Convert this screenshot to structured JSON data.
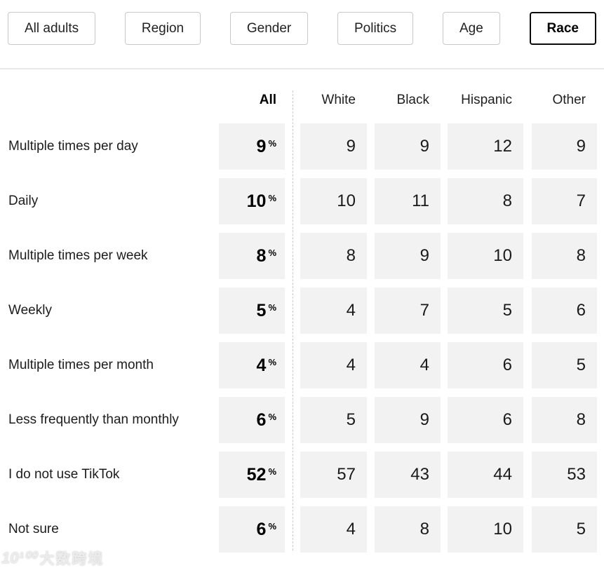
{
  "filters": {
    "items": [
      {
        "label": "All adults",
        "selected": false
      },
      {
        "label": "Region",
        "selected": false
      },
      {
        "label": "Gender",
        "selected": false
      },
      {
        "label": "Politics",
        "selected": false
      },
      {
        "label": "Age",
        "selected": false
      },
      {
        "label": "Race",
        "selected": true
      }
    ]
  },
  "table": {
    "all_column_header": "All",
    "percent_symbol": "%",
    "group_headers": [
      "White",
      "Black",
      "Hispanic",
      "Other"
    ],
    "rows": [
      {
        "label": "Multiple times per day",
        "all": "9",
        "values": [
          "9",
          "9",
          "12",
          "9"
        ]
      },
      {
        "label": "Daily",
        "all": "10",
        "values": [
          "10",
          "11",
          "8",
          "7"
        ]
      },
      {
        "label": "Multiple times per week",
        "all": "8",
        "values": [
          "8",
          "9",
          "10",
          "8"
        ]
      },
      {
        "label": "Weekly",
        "all": "5",
        "values": [
          "4",
          "7",
          "5",
          "6"
        ]
      },
      {
        "label": "Multiple times per month",
        "all": "4",
        "values": [
          "4",
          "4",
          "6",
          "5"
        ]
      },
      {
        "label": "Less frequently than monthly",
        "all": "6",
        "values": [
          "5",
          "9",
          "6",
          "8"
        ]
      },
      {
        "label": "I do not use TikTok",
        "all": "52",
        "values": [
          "57",
          "43",
          "44",
          "53"
        ]
      },
      {
        "label": "Not sure",
        "all": "6",
        "values": [
          "4",
          "8",
          "10",
          "5"
        ]
      }
    ]
  },
  "watermark": {
    "logo": "10¹⁰⁰",
    "text": "大数跨境"
  },
  "colors": {
    "cell_background": "#f2f2f3",
    "selected_button_border": "#0a0a0a",
    "button_border": "#c9c9c9",
    "divider": "#e8e8e8",
    "dashed_separator": "#c9c9c9",
    "text": "#1a1a1a"
  },
  "chart_data": {
    "type": "table",
    "title": "TikTok usage frequency by race",
    "categories": [
      "Multiple times per day",
      "Daily",
      "Multiple times per week",
      "Weekly",
      "Multiple times per month",
      "Less frequently than monthly",
      "I do not use TikTok",
      "Not sure"
    ],
    "series": [
      {
        "name": "All",
        "unit": "%",
        "values": [
          9,
          10,
          8,
          5,
          4,
          6,
          52,
          6
        ]
      },
      {
        "name": "White",
        "values": [
          9,
          10,
          8,
          4,
          4,
          5,
          57,
          4
        ]
      },
      {
        "name": "Black",
        "values": [
          9,
          11,
          9,
          7,
          4,
          9,
          43,
          8
        ]
      },
      {
        "name": "Hispanic",
        "values": [
          12,
          8,
          10,
          5,
          6,
          6,
          44,
          10
        ]
      },
      {
        "name": "Other",
        "values": [
          9,
          7,
          8,
          6,
          5,
          8,
          53,
          5
        ]
      }
    ],
    "filters": [
      "All adults",
      "Region",
      "Gender",
      "Politics",
      "Age",
      "Race"
    ],
    "active_filter": "Race",
    "legend_position": "none",
    "grid": false
  }
}
